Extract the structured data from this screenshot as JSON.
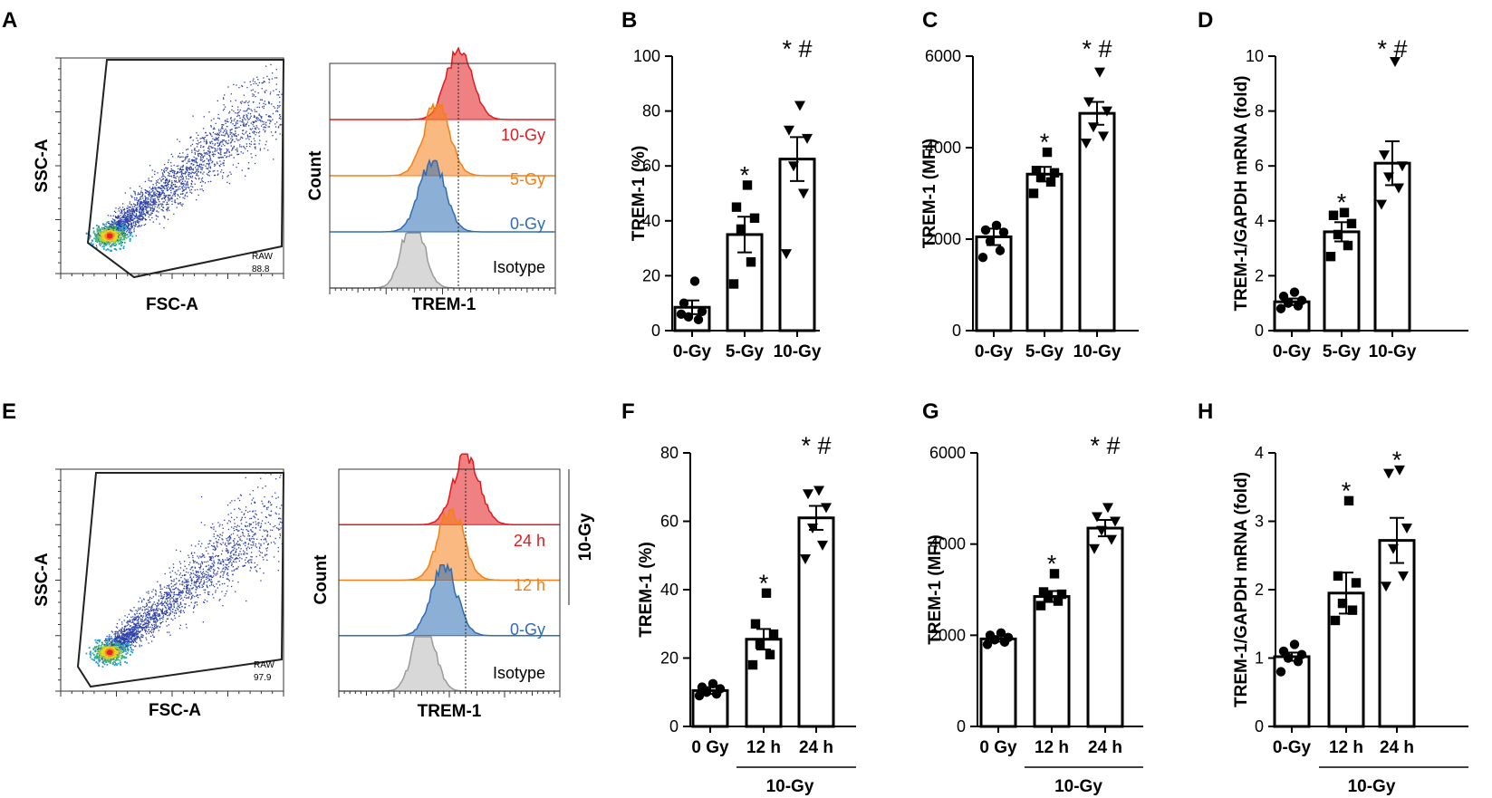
{
  "panel_labels": [
    "A",
    "B",
    "C",
    "D",
    "E",
    "F",
    "G",
    "H"
  ],
  "colors": {
    "red": "#e31a1c",
    "orange": "#f57f17",
    "blue": "#2e6db4",
    "gray": "#a8a8a8"
  },
  "flow": {
    "A": {
      "x_label": "FSC-A",
      "y_label": "SSC-A",
      "gate_name": "RAW",
      "gate_pct": "88.8"
    },
    "E": {
      "x_label": "FSC-A",
      "y_label": "SSC-A",
      "gate_name": "RAW",
      "gate_pct": "97.9"
    }
  },
  "histograms": {
    "A": {
      "x_label": "TREM-1",
      "y_label": "Count",
      "tracks": [
        "10-Gy",
        "5-Gy",
        "0-Gy",
        "Isotype"
      ],
      "bracket_label": ""
    },
    "E": {
      "x_label": "TREM-1",
      "y_label": "Count",
      "tracks": [
        "24 h",
        "12 h",
        "0-Gy",
        "Isotype"
      ],
      "bracket_label": "10-Gy"
    }
  },
  "chart_data": [
    {
      "panel": "B",
      "type": "bar",
      "ylabel": "TREM-1 (%)",
      "categories": [
        "0-Gy",
        "5-Gy",
        "10-Gy"
      ],
      "values": [
        8.5,
        35,
        62.5
      ],
      "sem": [
        2.5,
        6.5,
        8
      ],
      "ylim": [
        0,
        100
      ],
      "yticks": [
        0,
        20,
        40,
        60,
        80,
        100
      ],
      "markers": [
        "circle",
        "square",
        "triangle"
      ],
      "points": [
        [
          6,
          4,
          5,
          7,
          10,
          18
        ],
        [
          17,
          25,
          37,
          41,
          45,
          53
        ],
        [
          28,
          50,
          60,
          70,
          73,
          82
        ]
      ],
      "annotations": [
        "",
        "*",
        "* #"
      ],
      "group_label": ""
    },
    {
      "panel": "C",
      "type": "bar",
      "ylabel": "TREM-1 (MFI)",
      "categories": [
        "0-Gy",
        "5-Gy",
        "10-Gy"
      ],
      "values": [
        2050,
        3420,
        4750
      ],
      "sem": [
        180,
        160,
        250
      ],
      "ylim": [
        0,
        6000
      ],
      "yticks": [
        0,
        2000,
        4000,
        6000
      ],
      "markers": [
        "circle",
        "square",
        "triangle"
      ],
      "points": [
        [
          1600,
          1750,
          1950,
          2150,
          2200,
          2300
        ],
        [
          3000,
          3250,
          3350,
          3450,
          3500,
          3900
        ],
        [
          4100,
          4250,
          4450,
          4800,
          5000,
          5650
        ]
      ],
      "annotations": [
        "",
        "*",
        "* #"
      ],
      "group_label": ""
    },
    {
      "panel": "D",
      "type": "bar",
      "ylabel": "TREM-1/GAPDH mRNA (fold)",
      "categories": [
        "0-Gy",
        "5-Gy",
        "10-Gy"
      ],
      "values": [
        1.05,
        3.6,
        6.1
      ],
      "sem": [
        0.12,
        0.35,
        0.8
      ],
      "ylim": [
        0,
        10
      ],
      "yticks": [
        0,
        2,
        4,
        6,
        8,
        10
      ],
      "markers": [
        "circle",
        "square",
        "triangle"
      ],
      "points": [
        [
          0.8,
          0.9,
          1.0,
          1.1,
          1.25,
          1.4
        ],
        [
          2.7,
          3.1,
          3.5,
          3.9,
          4.2,
          4.3
        ],
        [
          4.6,
          5.2,
          5.6,
          6.0,
          6.4,
          9.8
        ]
      ],
      "annotations": [
        "",
        "*",
        "* #"
      ],
      "group_label": ""
    },
    {
      "panel": "F",
      "type": "bar",
      "ylabel": "TREM-1 (%)",
      "categories": [
        "0 Gy",
        "12 h",
        "24 h"
      ],
      "values": [
        10.5,
        25.5,
        61
      ],
      "sem": [
        1,
        3,
        3.5
      ],
      "ylim": [
        0,
        80
      ],
      "yticks": [
        0,
        20,
        40,
        60,
        80
      ],
      "markers": [
        "circle",
        "square",
        "triangle"
      ],
      "points": [
        [
          9,
          9.5,
          10,
          11,
          11.5,
          12.5
        ],
        [
          18,
          21,
          24,
          27,
          30,
          39
        ],
        [
          49,
          53,
          58,
          64,
          68,
          69
        ]
      ],
      "annotations": [
        "",
        "*",
        "* #"
      ],
      "group_label": "10-Gy"
    },
    {
      "panel": "G",
      "type": "bar",
      "ylabel": "TREM-1 (MFI)",
      "categories": [
        "0 Gy",
        "12 h",
        "24 h"
      ],
      "values": [
        1920,
        2850,
        4350
      ],
      "sem": [
        60,
        120,
        180
      ],
      "ylim": [
        0,
        6000
      ],
      "yticks": [
        0,
        2000,
        4000,
        6000
      ],
      "markers": [
        "circle",
        "square",
        "triangle"
      ],
      "points": [
        [
          1800,
          1850,
          1900,
          1950,
          2000,
          2050
        ],
        [
          2650,
          2750,
          2850,
          2900,
          2950,
          3350
        ],
        [
          3900,
          4100,
          4300,
          4500,
          4600,
          4800
        ]
      ],
      "annotations": [
        "",
        "*",
        "* #"
      ],
      "group_label": "10-Gy"
    },
    {
      "panel": "H",
      "type": "bar",
      "ylabel": "TREM-1/GAPDH mRNA (fold)",
      "categories": [
        "0-Gy",
        "12 h",
        "24 h"
      ],
      "values": [
        1.02,
        1.95,
        2.72
      ],
      "sem": [
        0.06,
        0.3,
        0.33
      ],
      "ylim": [
        0,
        4
      ],
      "yticks": [
        0,
        1,
        2,
        3,
        4
      ],
      "markers": [
        "circle",
        "square",
        "triangle"
      ],
      "points": [
        [
          0.8,
          0.95,
          1.0,
          1.05,
          1.1,
          1.2
        ],
        [
          1.55,
          1.7,
          1.8,
          2.1,
          2.2,
          3.3
        ],
        [
          2.05,
          2.2,
          2.6,
          2.9,
          3.7,
          3.75
        ]
      ],
      "annotations": [
        "",
        "*",
        "*"
      ],
      "group_label": "10-Gy"
    }
  ]
}
